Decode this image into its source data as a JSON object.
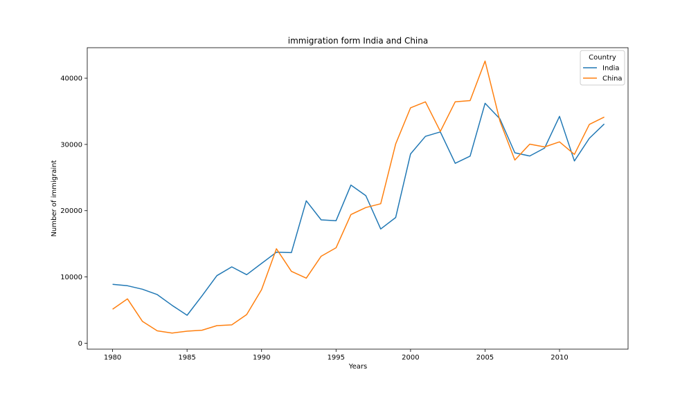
{
  "chart_data": {
    "type": "line",
    "title": "immigration form India and China",
    "xlabel": "Years",
    "ylabel": "Number of immigraint",
    "xlim": [
      1978.3,
      2014.6
    ],
    "ylim": [
      -900,
      44600
    ],
    "grid": false,
    "x": [
      1980,
      1981,
      1982,
      1983,
      1984,
      1985,
      1986,
      1987,
      1988,
      1989,
      1990,
      1991,
      1992,
      1993,
      1994,
      1995,
      1996,
      1997,
      1998,
      1999,
      2000,
      2001,
      2002,
      2003,
      2004,
      2005,
      2006,
      2007,
      2008,
      2009,
      2010,
      2011,
      2012,
      2013
    ],
    "x_ticks": [
      1980,
      1985,
      1990,
      1995,
      2000,
      2005,
      2010
    ],
    "y_ticks": [
      0,
      10000,
      20000,
      30000,
      40000
    ],
    "legend": {
      "title": "Country",
      "position": "top-right"
    },
    "series": [
      {
        "name": "India",
        "color": "#1f77b4",
        "values": [
          8880,
          8670,
          8147,
          7338,
          5704,
          4211,
          7150,
          10189,
          11522,
          10343,
          12041,
          13734,
          13673,
          21496,
          18620,
          18489,
          23859,
          22268,
          17241,
          18974,
          28572,
          31223,
          31889,
          27155,
          28235,
          36210,
          33848,
          28742,
          28261,
          29456,
          34235,
          27509,
          30933,
          33087
        ]
      },
      {
        "name": "China",
        "color": "#ff7f0e",
        "values": [
          5123,
          6682,
          3308,
          1863,
          1527,
          1816,
          1960,
          2643,
          2758,
          4323,
          8076,
          14255,
          10846,
          9817,
          13128,
          14398,
          19415,
          20475,
          21049,
          30069,
          35529,
          36434,
          31961,
          36439,
          36619,
          42584,
          33518,
          27642,
          30037,
          29622,
          30391,
          28502,
          33024,
          34129
        ]
      }
    ]
  }
}
